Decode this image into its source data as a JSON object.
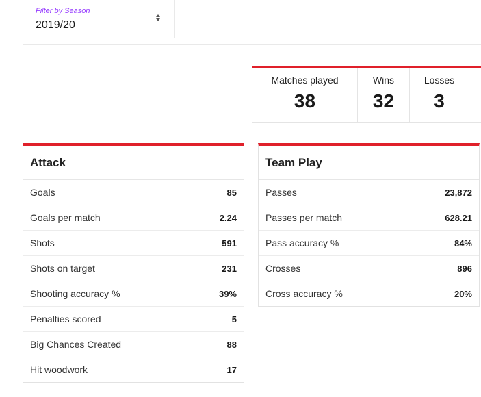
{
  "filter": {
    "label": "Filter by Season",
    "value": "2019/20"
  },
  "summary": [
    {
      "label": "Matches played",
      "value": "38"
    },
    {
      "label": "Wins",
      "value": "32"
    },
    {
      "label": "Losses",
      "value": "3"
    }
  ],
  "attack": {
    "title": "Attack",
    "rows": [
      {
        "label": "Goals",
        "value": "85"
      },
      {
        "label": "Goals per match",
        "value": "2.24"
      },
      {
        "label": "Shots",
        "value": "591"
      },
      {
        "label": "Shots on target",
        "value": "231"
      },
      {
        "label": "Shooting accuracy %",
        "value": "39%"
      },
      {
        "label": "Penalties scored",
        "value": "5"
      },
      {
        "label": "Big Chances Created",
        "value": "88"
      },
      {
        "label": "Hit woodwork",
        "value": "17"
      }
    ]
  },
  "team_play": {
    "title": "Team Play",
    "rows": [
      {
        "label": "Passes",
        "value": "23,872"
      },
      {
        "label": "Passes per match",
        "value": "628.21"
      },
      {
        "label": "Pass accuracy %",
        "value": "84%"
      },
      {
        "label": "Crosses",
        "value": "896"
      },
      {
        "label": "Cross accuracy %",
        "value": "20%"
      }
    ]
  },
  "colors": {
    "accent": "#e0202a",
    "filter_label": "#963cff"
  }
}
